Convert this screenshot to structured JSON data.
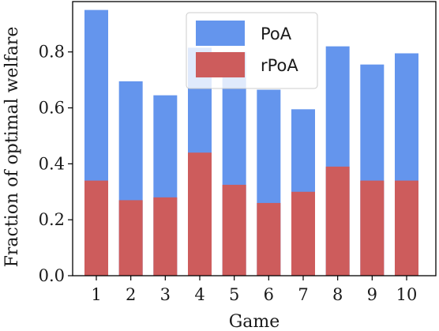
{
  "chart_data": {
    "type": "bar",
    "stacking": "overlay",
    "xlabel": "Game",
    "ylabel": "Fraction of optimal welfare",
    "ylim": [
      0,
      0.98
    ],
    "yticks": [
      "0.0",
      "0.2",
      "0.4",
      "0.6",
      "0.8"
    ],
    "categories": [
      "1",
      "2",
      "3",
      "4",
      "5",
      "6",
      "7",
      "8",
      "9",
      "10"
    ],
    "series": [
      {
        "name": "PoA",
        "color": "#6495ed",
        "values": [
          0.95,
          0.695,
          0.645,
          0.815,
          0.8,
          0.665,
          0.595,
          0.82,
          0.755,
          0.795
        ]
      },
      {
        "name": "rPoA",
        "color": "#cd5c5c",
        "values": [
          0.34,
          0.27,
          0.28,
          0.44,
          0.325,
          0.26,
          0.3,
          0.39,
          0.34,
          0.34
        ]
      }
    ],
    "legend_position": "top-center",
    "grid": false
  }
}
